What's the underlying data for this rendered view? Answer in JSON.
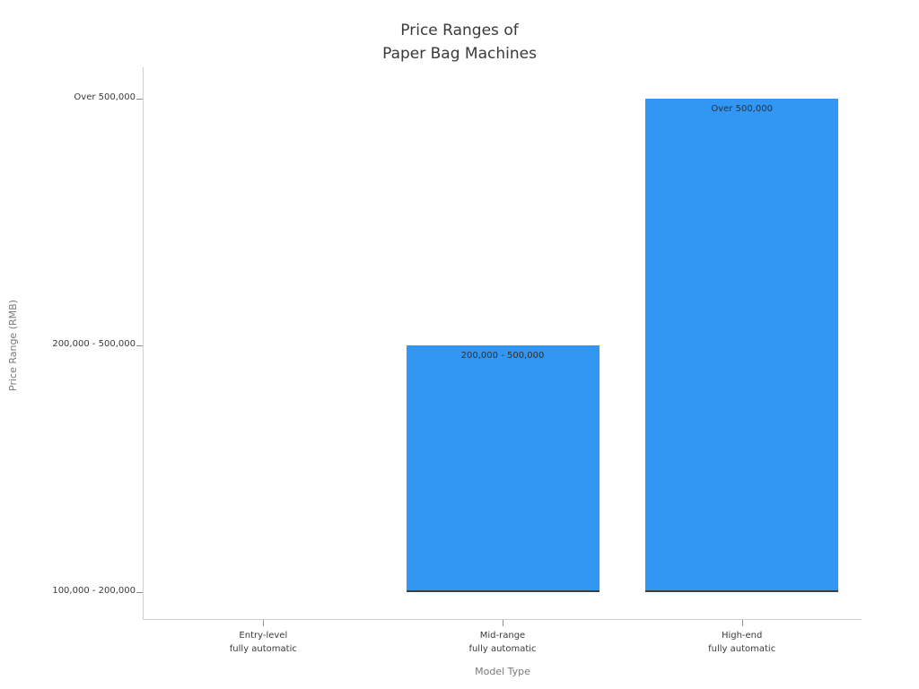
{
  "chart_data": {
    "type": "bar",
    "title": "Price Ranges of\nPaper Bag Machines",
    "xlabel": "Model Type",
    "ylabel": "Price Range (RMB)",
    "categories": [
      "Entry-level\nfully automatic",
      "Mid-range\nfully automatic",
      "High-end\nfully automatic"
    ],
    "y_tick_labels": [
      "100,000 - 200,000",
      "200,000 - 500,000",
      "Over 500,000"
    ],
    "y_axis_type": "ordinal",
    "values": [
      0,
      1,
      2
    ],
    "value_meaning": "index into y_tick_labels marking the top of each bar; bars rise from the '100,000 - 200,000' level",
    "bar_labels": [
      "",
      "200,000 - 500,000",
      "Over 500,000"
    ],
    "bar_color": "#3296F3",
    "grid": false,
    "legend": false,
    "background": "#ffffff"
  }
}
